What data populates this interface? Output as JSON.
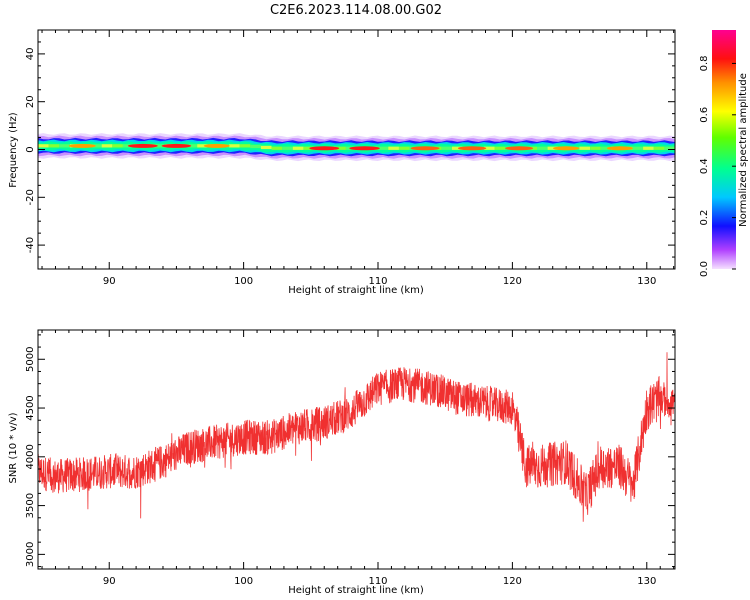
{
  "title": "C2E6.2023.114.08.00.G02",
  "chart_data": [
    {
      "type": "heatmap",
      "title": "C2E6.2023.114.08.00.G02",
      "xlabel": "Height of straight line (km)",
      "ylabel": "Frequency (Hz)",
      "xlim": [
        84.7,
        132.1
      ],
      "ylim": [
        -50,
        50
      ],
      "xticks": [
        90,
        100,
        110,
        120,
        130
      ],
      "yticks": [
        -40,
        -20,
        0,
        20,
        40
      ],
      "grid": false,
      "colorbar": {
        "label": "Normalized spectral amplitude",
        "range": [
          0.0,
          0.93
        ],
        "ticks": [
          0.0,
          0.2,
          0.4,
          0.6,
          0.8
        ],
        "colormap": "gist_rainbow_r"
      },
      "band": {
        "description_points": [
          {
            "x": 84.7,
            "center_hz": 1.5,
            "halfwidth_hz": 2.5
          },
          {
            "x": 100,
            "center_hz": 1.5,
            "halfwidth_hz": 2.5
          },
          {
            "x": 102,
            "center_hz": 0.5,
            "halfwidth_hz": 2.5
          },
          {
            "x": 132.1,
            "center_hz": 0.5,
            "halfwidth_hz": 2.5
          }
        ],
        "peaks": [
          {
            "x": 88,
            "amp": 0.75
          },
          {
            "x": 92.5,
            "amp": 0.9
          },
          {
            "x": 95,
            "amp": 0.88
          },
          {
            "x": 98,
            "amp": 0.7
          },
          {
            "x": 106,
            "amp": 0.9
          },
          {
            "x": 109,
            "amp": 0.93
          },
          {
            "x": 113.5,
            "amp": 0.85
          },
          {
            "x": 117,
            "amp": 0.82
          },
          {
            "x": 120.5,
            "amp": 0.8
          },
          {
            "x": 124,
            "amp": 0.72
          },
          {
            "x": 128,
            "amp": 0.7
          }
        ]
      }
    },
    {
      "type": "line",
      "xlabel": "Height of straight line (km)",
      "ylabel": "SNR (10 * v/v)",
      "xlim": [
        84.7,
        132.1
      ],
      "ylim": [
        2850,
        5300
      ],
      "xticks": [
        90,
        100,
        110,
        120,
        130
      ],
      "yticks": [
        3000,
        3500,
        4000,
        4500,
        5000
      ],
      "grid": false,
      "series": [
        {
          "color": "#f03030",
          "trend": {
            "x": [
              84.7,
              86,
              88,
              90,
              92,
              94,
              96,
              98,
              100,
              102,
              104,
              106,
              108,
              110,
              112,
              114,
              116,
              118,
              120,
              121,
              122,
              124,
              125.5,
              126.5,
              128,
              129,
              130,
              131,
              132.1
            ],
            "y": [
              3850,
              3800,
              3820,
              3850,
              3850,
              3950,
              4100,
              4150,
              4200,
              4200,
              4300,
              4350,
              4450,
              4700,
              4750,
              4700,
              4600,
              4550,
              4500,
              3900,
              3900,
              3950,
              3600,
              3900,
              3900,
              3700,
              4500,
              4600,
              4550
            ]
          }
        }
      ]
    }
  ]
}
